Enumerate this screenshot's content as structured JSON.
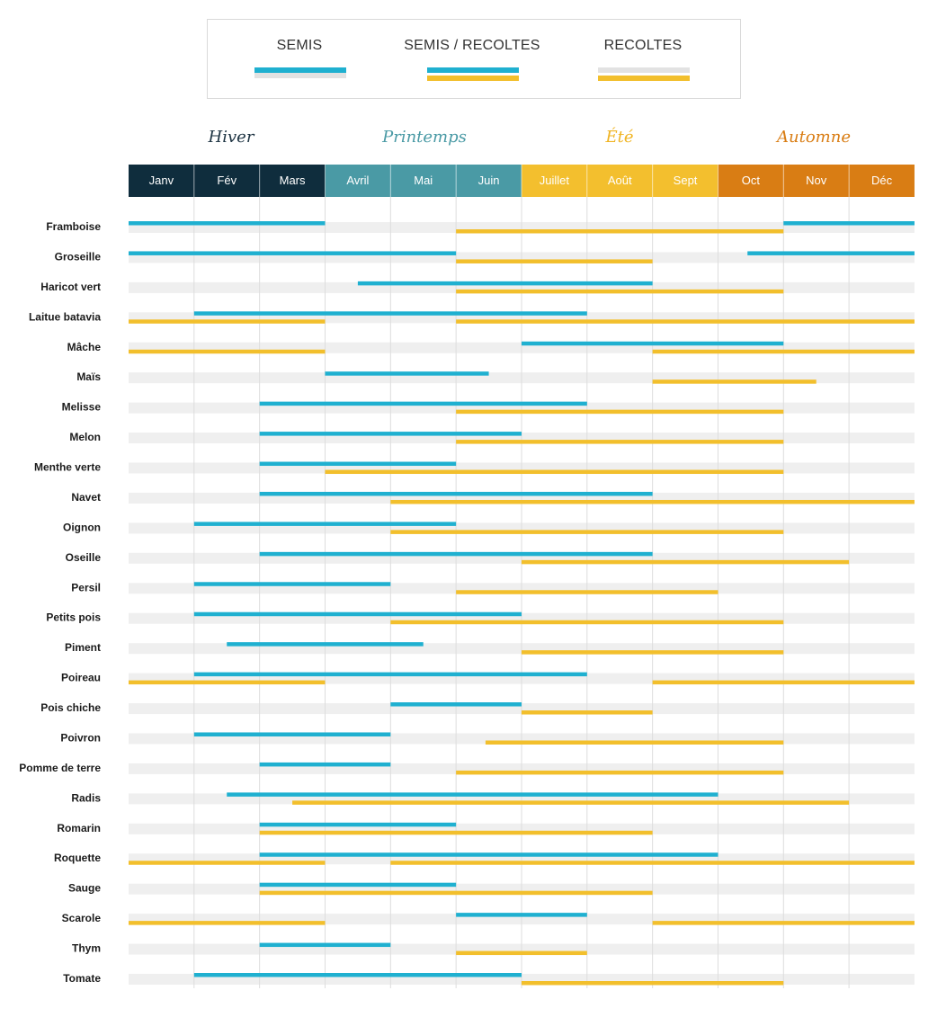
{
  "colors": {
    "semis": "#1fb0d0",
    "recoltes": "#f2bf2c",
    "track": "#efefef",
    "gridline": "#dddddd",
    "winter": "#0f2d3d",
    "spring": "#4a9aa5",
    "summer": "#f3bf2e",
    "autumn": "#d97d14",
    "season_text_winter": "#1d3342",
    "season_text_spring": "#4a9aa5",
    "season_text_summer": "#f0b422",
    "season_text_autumn": "#d97d14"
  },
  "legend": {
    "semis_label": "SEMIS",
    "both_label": "SEMIS / RECOLTES",
    "recoltes_label": "RECOLTES"
  },
  "chart_data": {
    "type": "gantt",
    "seasons": [
      {
        "name": "Hiver",
        "color": "#1d3342"
      },
      {
        "name": "Printemps",
        "color": "#4a9aa5"
      },
      {
        "name": "Été",
        "color": "#f0b422"
      },
      {
        "name": "Automne",
        "color": "#d97d14"
      }
    ],
    "months": [
      {
        "label": "Janv",
        "season": "winter"
      },
      {
        "label": "Fév",
        "season": "winter"
      },
      {
        "label": "Mars",
        "season": "winter"
      },
      {
        "label": "Avril",
        "season": "spring"
      },
      {
        "label": "Mai",
        "season": "spring"
      },
      {
        "label": "Juin",
        "season": "spring"
      },
      {
        "label": "Juillet",
        "season": "summer"
      },
      {
        "label": "Août",
        "season": "summer"
      },
      {
        "label": "Sept",
        "season": "summer"
      },
      {
        "label": "Oct",
        "season": "autumn"
      },
      {
        "label": "Nov",
        "season": "autumn"
      },
      {
        "label": "Déc",
        "season": "autumn"
      }
    ],
    "series_names": [
      "SEMIS",
      "RECOLTES"
    ],
    "plants": [
      {
        "name": "Framboise",
        "semis": [
          [
            1,
            4
          ],
          [
            11,
            13
          ]
        ],
        "recoltes": [
          [
            6,
            11
          ]
        ]
      },
      {
        "name": "Groseille",
        "semis": [
          [
            1,
            6
          ],
          [
            10.45,
            13
          ]
        ],
        "recoltes": [
          [
            6,
            9
          ]
        ]
      },
      {
        "name": "Haricot vert",
        "semis": [
          [
            4.5,
            9
          ]
        ],
        "recoltes": [
          [
            6,
            11
          ]
        ]
      },
      {
        "name": "Laitue batavia",
        "semis": [
          [
            2,
            8
          ]
        ],
        "recoltes": [
          [
            1,
            4
          ],
          [
            6,
            13
          ]
        ]
      },
      {
        "name": "Mâche",
        "semis": [
          [
            7,
            11
          ]
        ],
        "recoltes": [
          [
            1,
            4
          ],
          [
            9,
            13
          ]
        ]
      },
      {
        "name": "Maïs",
        "semis": [
          [
            4,
            6.5
          ]
        ],
        "recoltes": [
          [
            9,
            11.5
          ]
        ]
      },
      {
        "name": "Melisse",
        "semis": [
          [
            3,
            8
          ]
        ],
        "recoltes": [
          [
            6,
            11
          ]
        ]
      },
      {
        "name": "Melon",
        "semis": [
          [
            3,
            7
          ]
        ],
        "recoltes": [
          [
            6,
            11
          ]
        ]
      },
      {
        "name": "Menthe verte",
        "semis": [
          [
            3,
            6
          ]
        ],
        "recoltes": [
          [
            4,
            11
          ]
        ]
      },
      {
        "name": "Navet",
        "semis": [
          [
            3,
            9
          ]
        ],
        "recoltes": [
          [
            5,
            13
          ]
        ]
      },
      {
        "name": "Oignon",
        "semis": [
          [
            2,
            6
          ]
        ],
        "recoltes": [
          [
            5,
            11
          ]
        ]
      },
      {
        "name": "Oseille",
        "semis": [
          [
            3,
            9
          ]
        ],
        "recoltes": [
          [
            7,
            12
          ]
        ]
      },
      {
        "name": "Persil",
        "semis": [
          [
            2,
            5
          ]
        ],
        "recoltes": [
          [
            6,
            10
          ]
        ]
      },
      {
        "name": "Petits pois",
        "semis": [
          [
            2,
            7
          ]
        ],
        "recoltes": [
          [
            5,
            11
          ]
        ]
      },
      {
        "name": "Piment",
        "semis": [
          [
            2.5,
            5.5
          ]
        ],
        "recoltes": [
          [
            7,
            11
          ]
        ]
      },
      {
        "name": "Poireau",
        "semis": [
          [
            2,
            8
          ]
        ],
        "recoltes": [
          [
            1,
            4
          ],
          [
            9,
            13
          ]
        ]
      },
      {
        "name": "Pois chiche",
        "semis": [
          [
            5,
            7
          ]
        ],
        "recoltes": [
          [
            7,
            9
          ]
        ]
      },
      {
        "name": "Poivron",
        "semis": [
          [
            2,
            5
          ]
        ],
        "recoltes": [
          [
            6.45,
            11
          ]
        ]
      },
      {
        "name": "Pomme de terre",
        "semis": [
          [
            3,
            5
          ]
        ],
        "recoltes": [
          [
            6,
            11
          ]
        ]
      },
      {
        "name": "Radis",
        "semis": [
          [
            2.5,
            10
          ]
        ],
        "recoltes": [
          [
            3.5,
            12
          ]
        ]
      },
      {
        "name": "Romarin",
        "semis": [
          [
            3,
            6
          ]
        ],
        "recoltes": [
          [
            3,
            9
          ]
        ]
      },
      {
        "name": "Roquette",
        "semis": [
          [
            3,
            10
          ]
        ],
        "recoltes": [
          [
            1,
            4
          ],
          [
            5,
            13
          ]
        ]
      },
      {
        "name": "Sauge",
        "semis": [
          [
            3,
            6
          ]
        ],
        "recoltes": [
          [
            3,
            9
          ]
        ]
      },
      {
        "name": "Scarole",
        "semis": [
          [
            6,
            8
          ]
        ],
        "recoltes": [
          [
            1,
            4
          ],
          [
            9,
            13
          ]
        ]
      },
      {
        "name": "Thym",
        "semis": [
          [
            3,
            5
          ]
        ],
        "recoltes": [
          [
            6,
            8
          ]
        ]
      },
      {
        "name": "Tomate",
        "semis": [
          [
            2,
            7
          ]
        ],
        "recoltes": [
          [
            7,
            11
          ]
        ]
      }
    ]
  }
}
